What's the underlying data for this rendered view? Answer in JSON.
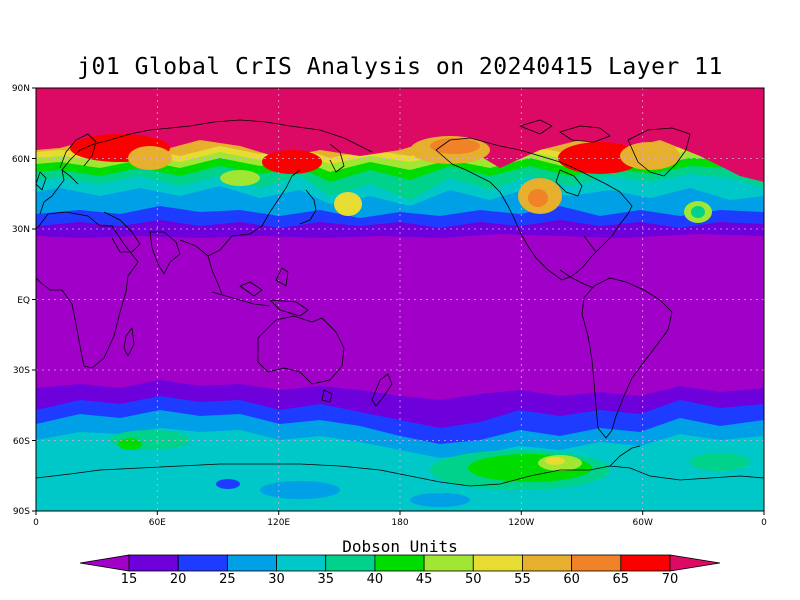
{
  "title": "j01 Global CrIS Analysis on 20240415 Layer 11",
  "y_ticks": [
    "90N",
    "60N",
    "30N",
    "EQ",
    "30S",
    "60S",
    "90S"
  ],
  "x_ticks": [
    "0",
    "60E",
    "120E",
    "180",
    "120W",
    "60W",
    "0"
  ],
  "colorbar": {
    "title": "Dobson Units",
    "levels": [
      "15",
      "20",
      "25",
      "30",
      "35",
      "40",
      "45",
      "50",
      "55",
      "60",
      "65",
      "70"
    ],
    "colors": [
      "#a000c8",
      "#6e00dc",
      "#1e3cff",
      "#00a0e6",
      "#00c8c8",
      "#00d28c",
      "#00dc00",
      "#a0e632",
      "#e6dc32",
      "#e6af2d",
      "#f08228",
      "#fa0000",
      "#dc0a64"
    ],
    "low_color": "#a000c8",
    "high_color": "#dc0a64"
  },
  "map": {
    "background": "#a000c8",
    "colors": {
      "c15": "#a000c8",
      "c20": "#6e00dc",
      "c25": "#1e3cff",
      "c30": "#00a0e6",
      "c35": "#00c8c8",
      "c40": "#00d28c",
      "c45": "#00dc00",
      "c50": "#a0e632",
      "c55": "#e6dc32",
      "c60": "#e6af2d",
      "c65": "#f08228",
      "c70": "#fa0000",
      "c75": "#dc0a64"
    }
  }
}
